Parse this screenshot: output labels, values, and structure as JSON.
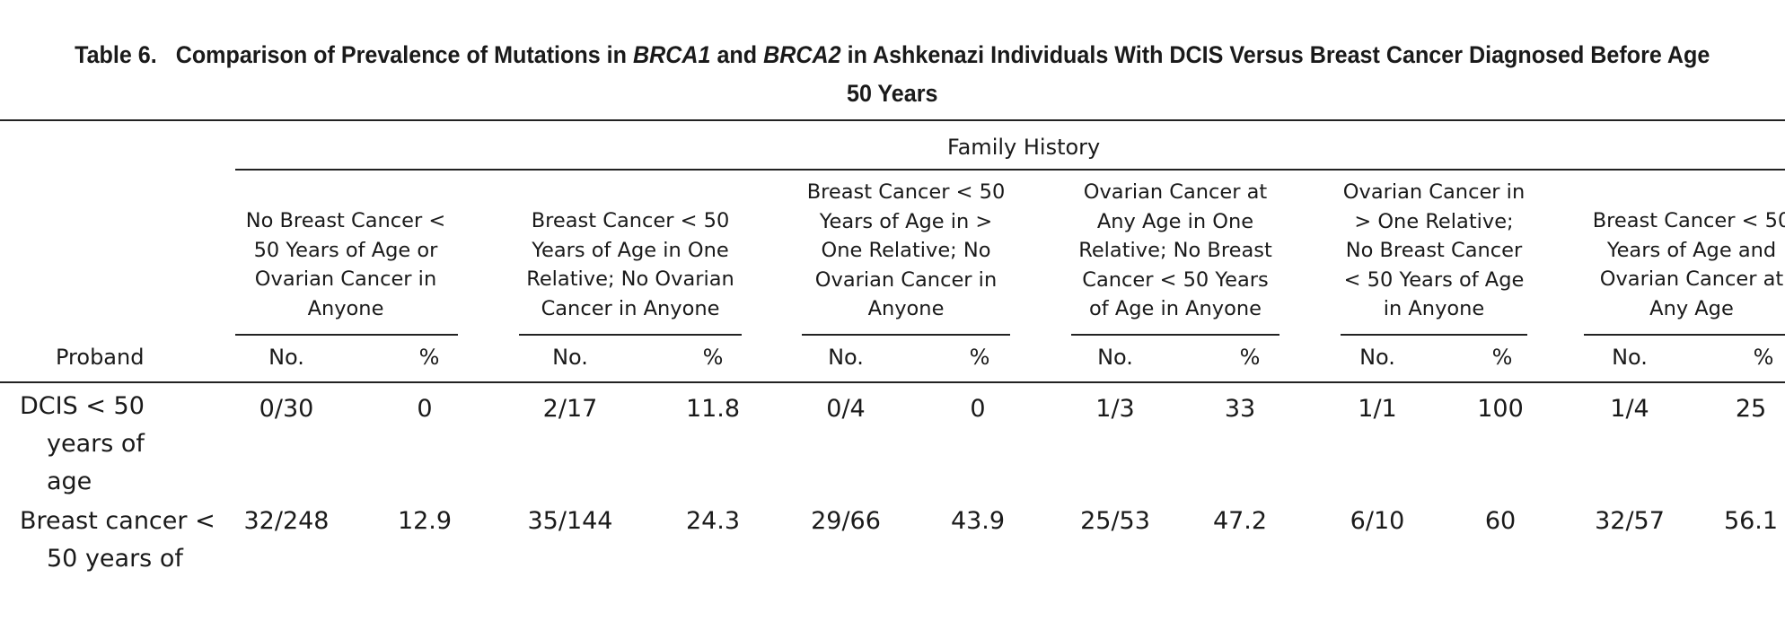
{
  "table": {
    "title_prefix": "Table 6.",
    "title_part1": "Comparison of Prevalence of Mutations in",
    "gene1": "BRCA1",
    "title_and": "and",
    "gene2": "BRCA2",
    "title_part2": "in Ashkenazi Individuals With DCIS Versus Breast Cancer Diagnosed Before Age",
    "title_line2": "50 Years",
    "group_header": "Family History",
    "stub_header": "Proband",
    "columns": [
      {
        "label": "No Breast Cancer < 50 Years of Age or Ovarian Cancer in Anyone",
        "sub1": "No.",
        "sub2": "%"
      },
      {
        "label": "Breast Cancer < 50 Years of Age in One Relative; No Ovarian Cancer in Anyone",
        "sub1": "No.",
        "sub2": "%"
      },
      {
        "label": "Breast Cancer < 50 Years of Age in > One Relative; No Ovarian Cancer in Anyone",
        "sub1": "No.",
        "sub2": "%"
      },
      {
        "label": "Ovarian Cancer at Any Age in One Relative; No Breast Cancer < 50 Years of Age in Anyone",
        "sub1": "No.",
        "sub2": "%"
      },
      {
        "label": "Ovarian Cancer in > One Relative; No Breast Cancer < 50 Years of Age in Anyone",
        "sub1": "No.",
        "sub2": "%"
      },
      {
        "label": "Breast Cancer < 50 Years of Age and Ovarian Cancer at Any Age",
        "sub1": "No.",
        "sub2": "%"
      }
    ],
    "rows": [
      {
        "label": "DCIS < 50 years of age",
        "cells": [
          "0/30",
          "0",
          "2/17",
          "11.8",
          "0/4",
          "0",
          "1/3",
          "33",
          "1/1",
          "100",
          "1/4",
          "25"
        ]
      },
      {
        "label": "Breast cancer < 50 years of",
        "cells": [
          "32/248",
          "12.9",
          "35/144",
          "24.3",
          "29/66",
          "43.9",
          "25/53",
          "47.2",
          "6/10",
          "60",
          "32/57",
          "56.1"
        ]
      }
    ]
  }
}
